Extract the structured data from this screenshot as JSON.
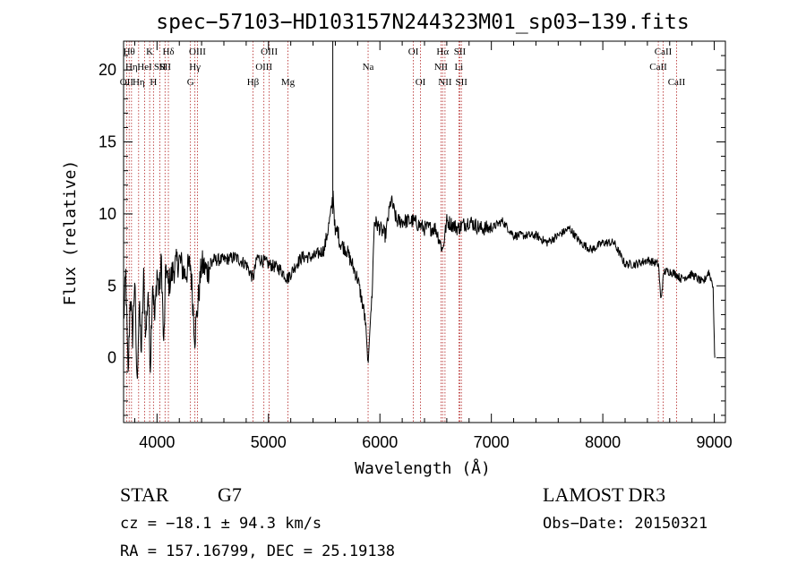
{
  "chart_data": {
    "type": "line",
    "title": "spec−57103−HD103157N244323M01_sp03−139.fits",
    "xlabel": "Wavelength (Å)",
    "ylabel": "Flux (relative)",
    "xlim": [
      3700,
      9100
    ],
    "ylim": [
      -4.5,
      22
    ],
    "xticks": [
      4000,
      5000,
      6000,
      7000,
      8000,
      9000
    ],
    "yticks": [
      0,
      5,
      10,
      15,
      20
    ],
    "grid": false,
    "series": [
      {
        "name": "flux",
        "x": [
          3700,
          3720,
          3740,
          3760,
          3780,
          3800,
          3820,
          3840,
          3860,
          3880,
          3900,
          3920,
          3940,
          3960,
          3980,
          4000,
          4020,
          4040,
          4060,
          4080,
          4100,
          4150,
          4200,
          4250,
          4300,
          4340,
          4400,
          4450,
          4500,
          4600,
          4700,
          4800,
          4861,
          4900,
          5000,
          5100,
          5172,
          5250,
          5300,
          5400,
          5500,
          5560,
          5580,
          5600,
          5620,
          5640,
          5700,
          5750,
          5800,
          5850,
          5870,
          5890,
          5895,
          5900,
          5910,
          5930,
          5950,
          6000,
          6050,
          6100,
          6150,
          6200,
          6300,
          6400,
          6500,
          6563,
          6600,
          6700,
          6800,
          6900,
          7000,
          7100,
          7200,
          7300,
          7400,
          7500,
          7600,
          7700,
          7800,
          7900,
          8000,
          8100,
          8200,
          8300,
          8400,
          8500,
          8520,
          8550,
          8600,
          8660,
          8700,
          8800,
          8900,
          8950,
          8990,
          9000,
          9005
        ],
        "y": [
          2.5,
          5.8,
          -1.5,
          4.5,
          1.5,
          5.5,
          -1.8,
          3.5,
          0.5,
          5.5,
          1.5,
          4.8,
          -0.5,
          5.5,
          2.5,
          6.0,
          4.5,
          6.8,
          0.5,
          6.5,
          5.0,
          6.2,
          6.8,
          5.8,
          6.5,
          1.5,
          6.5,
          6.0,
          6.8,
          6.8,
          7.0,
          6.5,
          5.5,
          7.0,
          6.5,
          6.2,
          5.5,
          6.5,
          7.0,
          7.0,
          7.5,
          10.0,
          11.5,
          8.5,
          9.0,
          8.0,
          7.5,
          6.5,
          5.5,
          3.5,
          2.5,
          0.0,
          -0.5,
          0.5,
          2.0,
          4.5,
          9.5,
          9.0,
          8.5,
          11.0,
          9.5,
          9.5,
          9.5,
          9.0,
          9.0,
          7.5,
          9.5,
          9.0,
          9.5,
          9.0,
          9.0,
          9.5,
          8.5,
          8.5,
          8.5,
          8.0,
          8.5,
          9.0,
          8.0,
          7.5,
          8.0,
          8.0,
          6.5,
          6.5,
          6.8,
          6.5,
          4.0,
          6.0,
          6.0,
          5.8,
          5.5,
          5.8,
          5.2,
          6.0,
          5.0,
          1.0,
          0.0
        ]
      }
    ],
    "lines": [
      {
        "x": 3727,
        "label": "OII",
        "row": 3
      },
      {
        "x": 3750,
        "label": "Hθ",
        "row": 1
      },
      {
        "x": 3771,
        "label": "Hη",
        "row": 2
      },
      {
        "x": 3835,
        "label": "Hη",
        "row": 3
      },
      {
        "x": 3889,
        "label": "HeI",
        "row": 2
      },
      {
        "x": 3934,
        "label": "K",
        "row": 1
      },
      {
        "x": 3968,
        "label": "H",
        "row": 3
      },
      {
        "x": 4026,
        "label": "SII",
        "row": 2
      },
      {
        "x": 4072,
        "label": "SII",
        "row": 2
      },
      {
        "x": 4102,
        "label": "Hδ",
        "row": 1
      },
      {
        "x": 4300,
        "label": "G",
        "row": 3
      },
      {
        "x": 4340,
        "label": "Hγ",
        "row": 2
      },
      {
        "x": 4363,
        "label": "OIII",
        "row": 1
      },
      {
        "x": 4861,
        "label": "Hβ",
        "row": 3
      },
      {
        "x": 4959,
        "label": "OIII",
        "row": 2
      },
      {
        "x": 5007,
        "label": "OIII",
        "row": 1
      },
      {
        "x": 5175,
        "label": "Mg",
        "row": 3
      },
      {
        "x": 5894,
        "label": "Na",
        "row": 2
      },
      {
        "x": 6300,
        "label": "OI",
        "row": 1
      },
      {
        "x": 6364,
        "label": "OI",
        "row": 3
      },
      {
        "x": 6548,
        "label": "NII",
        "row": 2
      },
      {
        "x": 6563,
        "label": "Hα",
        "row": 1
      },
      {
        "x": 6584,
        "label": "NII",
        "row": 3
      },
      {
        "x": 6708,
        "label": "Li",
        "row": 2
      },
      {
        "x": 6717,
        "label": "SII",
        "row": 1
      },
      {
        "x": 6731,
        "label": "SII",
        "row": 3
      },
      {
        "x": 8498,
        "label": "CaII",
        "row": 2
      },
      {
        "x": 8542,
        "label": "CaII",
        "row": 1
      },
      {
        "x": 8662,
        "label": "CaII",
        "row": 3
      }
    ]
  },
  "info": {
    "object_class": "STAR",
    "subclass": "G7",
    "survey": "LAMOST DR3",
    "cz": "cz = −18.1 ± 94.3 km/s",
    "obs_date": "Obs−Date: 20150321",
    "coords": "RA = 157.16799, DEC =  25.19138"
  },
  "colors": {
    "spectrum": "#000000",
    "line_markers": "#b22222",
    "axes": "#000000"
  }
}
